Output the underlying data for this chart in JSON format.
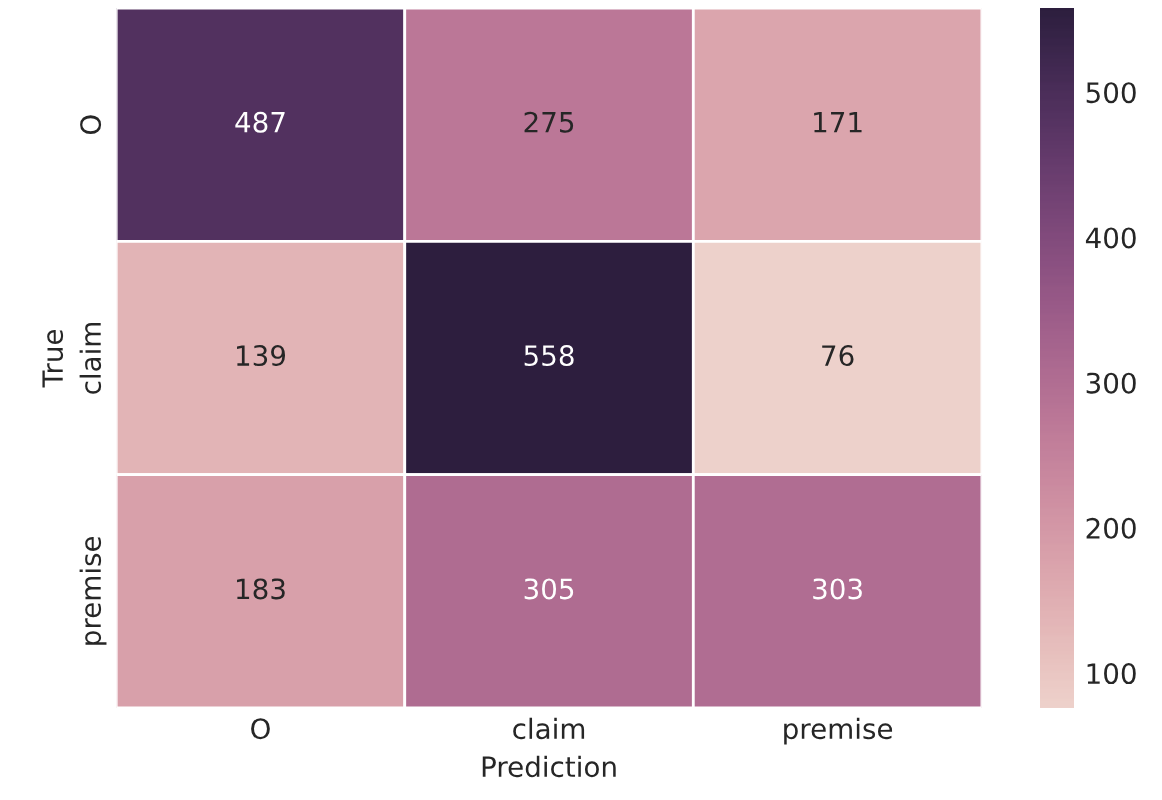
{
  "chart_data": {
    "type": "heatmap",
    "xlabel": "Prediction",
    "ylabel": "True",
    "categories": [
      "O",
      "claim",
      "premise"
    ],
    "y_categories": [
      "O",
      "claim",
      "premise"
    ],
    "cells": [
      [
        487,
        275,
        171
      ],
      [
        139,
        558,
        76
      ],
      [
        183,
        305,
        303
      ]
    ],
    "clim": [
      76,
      558
    ],
    "cticks": [
      100,
      200,
      300,
      400,
      500
    ],
    "data_labels": true
  }
}
